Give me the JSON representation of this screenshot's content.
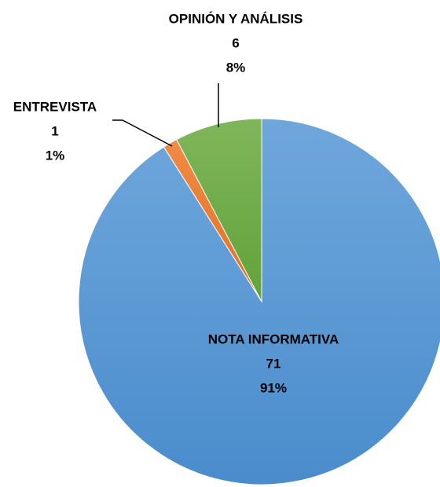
{
  "chart_data": {
    "type": "pie",
    "categories": [
      "NOTA INFORMATIVA",
      "ENTREVISTA",
      "OPINIÓN Y ANÁLISIS"
    ],
    "values": [
      71,
      1,
      6
    ],
    "percentages": [
      91,
      1,
      8
    ],
    "percentage_labels": [
      "91%",
      "1%",
      "8%"
    ],
    "colors": [
      "#5b9bd5",
      "#ed7d31",
      "#70ad47"
    ]
  }
}
